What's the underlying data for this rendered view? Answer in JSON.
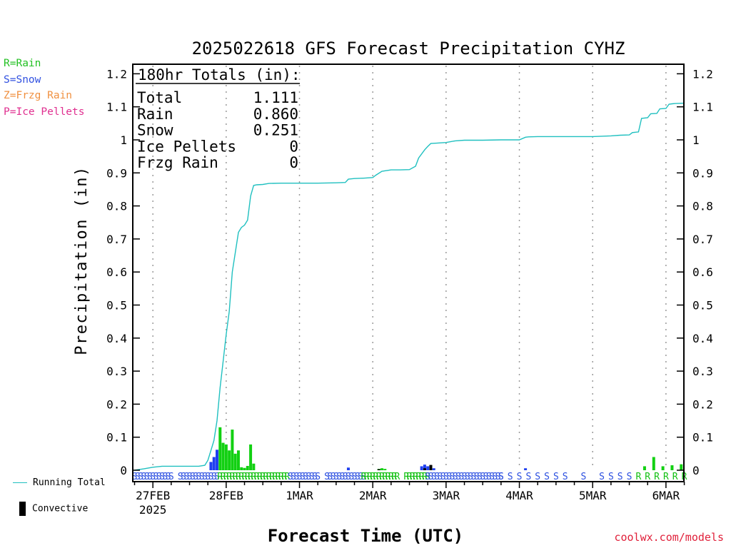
{
  "legend_keys": [
    {
      "text": "R=Rain",
      "color": "#22c022"
    },
    {
      "text": "S=Snow",
      "color": "#3050e0"
    },
    {
      "text": "Z=Frzg Rain",
      "color": "#f09040"
    },
    {
      "text": "P=Ice Pellets",
      "color": "#e03090"
    }
  ],
  "running_total_label": "Running Total",
  "convective_label": "Convective",
  "credit": "coolwx.com/models",
  "chart_data": {
    "type": "bar",
    "title": "2025022618 GFS Forecast Precipitation CYHZ",
    "xlabel": "Forecast Time (UTC)",
    "ylabel": "Precipitation (in)",
    "ylim": [
      0,
      1.22
    ],
    "yticks": [
      0,
      0.1,
      0.2,
      0.3,
      0.4,
      0.5,
      0.6,
      0.7,
      0.8,
      0.9,
      1,
      1.1,
      1.2
    ],
    "xlim_hours": [
      0,
      180
    ],
    "date_ticks": [
      {
        "hour": 6,
        "label": "27FEB",
        "sublabel": "2025"
      },
      {
        "hour": 30,
        "label": "28FEB"
      },
      {
        "hour": 54,
        "label": "1MAR"
      },
      {
        "hour": 78,
        "label": "2MAR"
      },
      {
        "hour": 102,
        "label": "3MAR"
      },
      {
        "hour": 126,
        "label": "4MAR"
      },
      {
        "hour": 150,
        "label": "5MAR"
      },
      {
        "hour": 174,
        "label": "6MAR"
      }
    ],
    "grid": "vertical dotted at 00Z",
    "totals_box": {
      "heading": "180hr Totals (in):",
      "rows": [
        {
          "label": "Total",
          "value": "1.111"
        },
        {
          "label": "Rain",
          "value": "0.860"
        },
        {
          "label": "Snow",
          "value": "0.251"
        },
        {
          "label": "Ice Pellets",
          "value": "0"
        },
        {
          "label": "Frzg Rain",
          "value": "0"
        }
      ]
    },
    "running_total": {
      "name": "Running Total",
      "points": [
        [
          0,
          0
        ],
        [
          3,
          0.004
        ],
        [
          6,
          0.009
        ],
        [
          9,
          0.012
        ],
        [
          12,
          0.012
        ],
        [
          15,
          0.012
        ],
        [
          18,
          0.012
        ],
        [
          21,
          0.012
        ],
        [
          23,
          0.015
        ],
        [
          24,
          0.03
        ],
        [
          25,
          0.06
        ],
        [
          26,
          0.09
        ],
        [
          27,
          0.15
        ],
        [
          28,
          0.25
        ],
        [
          29,
          0.33
        ],
        [
          30,
          0.41
        ],
        [
          31,
          0.48
        ],
        [
          32,
          0.6
        ],
        [
          33,
          0.66
        ],
        [
          34,
          0.72
        ],
        [
          35,
          0.735
        ],
        [
          36,
          0.742
        ],
        [
          37,
          0.757
        ],
        [
          38,
          0.83
        ],
        [
          39,
          0.862
        ],
        [
          40,
          0.864
        ],
        [
          42,
          0.865
        ],
        [
          44,
          0.868
        ],
        [
          48,
          0.869
        ],
        [
          54,
          0.869
        ],
        [
          60,
          0.869
        ],
        [
          66,
          0.87
        ],
        [
          69,
          0.871
        ],
        [
          70,
          0.881
        ],
        [
          72,
          0.883
        ],
        [
          75,
          0.884
        ],
        [
          78,
          0.886
        ],
        [
          79,
          0.893
        ],
        [
          81,
          0.905
        ],
        [
          84,
          0.909
        ],
        [
          87,
          0.909
        ],
        [
          90,
          0.91
        ],
        [
          92,
          0.92
        ],
        [
          93,
          0.945
        ],
        [
          95,
          0.97
        ],
        [
          96,
          0.98
        ],
        [
          97,
          0.989
        ],
        [
          99,
          0.99
        ],
        [
          102,
          0.992
        ],
        [
          105,
          0.997
        ],
        [
          108,
          0.999
        ],
        [
          114,
          0.999
        ],
        [
          120,
          1.0
        ],
        [
          126,
          1.0
        ],
        [
          128,
          1.008
        ],
        [
          129,
          1.009
        ],
        [
          132,
          1.01
        ],
        [
          138,
          1.01
        ],
        [
          144,
          1.01
        ],
        [
          150,
          1.01
        ],
        [
          156,
          1.012
        ],
        [
          159,
          1.014
        ],
        [
          162,
          1.015
        ],
        [
          163,
          1.022
        ],
        [
          165,
          1.024
        ],
        [
          166,
          1.065
        ],
        [
          168,
          1.067
        ],
        [
          169,
          1.079
        ],
        [
          171,
          1.08
        ],
        [
          172,
          1.094
        ],
        [
          174,
          1.095
        ],
        [
          175,
          1.108
        ],
        [
          176,
          1.109
        ],
        [
          177,
          1.11
        ],
        [
          180,
          1.111
        ]
      ]
    },
    "bars": [
      {
        "hour": 25,
        "value": 0.025,
        "type": "snow"
      },
      {
        "hour": 26,
        "value": 0.04,
        "type": "snow"
      },
      {
        "hour": 27,
        "value": 0.062,
        "type": "snow"
      },
      {
        "hour": 28,
        "value": 0.13,
        "type": "rain"
      },
      {
        "hour": 29,
        "value": 0.083,
        "type": "rain"
      },
      {
        "hour": 30,
        "value": 0.078,
        "type": "rain"
      },
      {
        "hour": 31,
        "value": 0.06,
        "type": "rain"
      },
      {
        "hour": 32,
        "value": 0.123,
        "type": "rain"
      },
      {
        "hour": 33,
        "value": 0.05,
        "type": "rain"
      },
      {
        "hour": 34,
        "value": 0.06,
        "type": "rain"
      },
      {
        "hour": 35,
        "value": 0.009,
        "type": "rain"
      },
      {
        "hour": 36,
        "value": 0.007,
        "type": "rain"
      },
      {
        "hour": 37,
        "value": 0.013,
        "type": "rain"
      },
      {
        "hour": 38,
        "value": 0.078,
        "type": "rain"
      },
      {
        "hour": 39,
        "value": 0.02,
        "type": "rain"
      },
      {
        "hour": 70,
        "value": 0.008,
        "type": "snow"
      },
      {
        "hour": 80,
        "value": 0.004,
        "type": "rain"
      },
      {
        "hour": 81,
        "value": 0.006,
        "type": "rain"
      },
      {
        "hour": 82,
        "value": 0.004,
        "type": "rain"
      },
      {
        "hour": 94,
        "value": 0.012,
        "type": "snow"
      },
      {
        "hour": 95,
        "value": 0.017,
        "type": "snow"
      },
      {
        "hour": 96,
        "value": 0.012,
        "type": "snow"
      },
      {
        "hour": 97,
        "value": 0.015,
        "type": "snow"
      },
      {
        "hour": 98,
        "value": 0.006,
        "type": "snow"
      },
      {
        "hour": 128,
        "value": 0.006,
        "type": "snow"
      },
      {
        "hour": 167,
        "value": 0.012,
        "type": "rain"
      },
      {
        "hour": 170,
        "value": 0.04,
        "type": "rain"
      },
      {
        "hour": 173,
        "value": 0.012,
        "type": "rain"
      },
      {
        "hour": 176,
        "value": 0.015,
        "type": "rain"
      },
      {
        "hour": 179,
        "value": 0.018,
        "type": "rain"
      }
    ],
    "convective_marks": [
      {
        "hour": 80,
        "value": 0.003
      },
      {
        "hour": 95,
        "value": 0.006
      },
      {
        "hour": 97,
        "value": 0.016
      }
    ],
    "ptype_strip": [
      {
        "from": 0,
        "to": 12,
        "type": "S"
      },
      {
        "from": 15,
        "to": 27,
        "type": "S"
      },
      {
        "from": 28,
        "to": 50,
        "type": "R"
      },
      {
        "from": 51,
        "to": 60,
        "type": "S"
      },
      {
        "from": 63,
        "to": 66,
        "type": "S"
      },
      {
        "from": 67,
        "to": 75,
        "type": "S"
      },
      {
        "from": 75,
        "to": 86,
        "type": "R"
      },
      {
        "from": 89,
        "to": 96,
        "type": "R"
      },
      {
        "from": 96,
        "to": 120,
        "type": "S"
      },
      {
        "from": 120,
        "to": 141,
        "type": "S",
        "step": 3
      },
      {
        "from": 147,
        "to": 147,
        "type": "S"
      },
      {
        "from": 153,
        "to": 162,
        "type": "S",
        "step": 3
      },
      {
        "from": 165,
        "to": 180,
        "type": "R",
        "step": 3
      }
    ]
  }
}
